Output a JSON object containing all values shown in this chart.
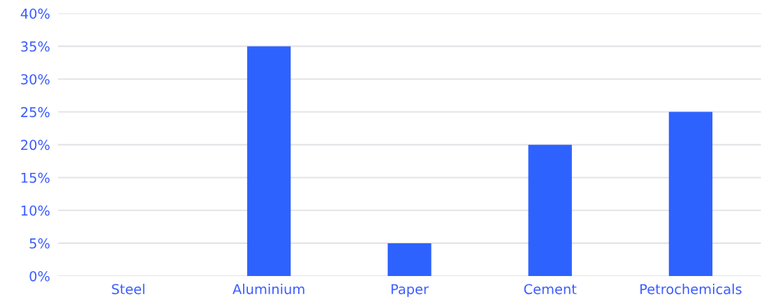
{
  "chart_data": {
    "type": "bar",
    "categories": [
      "Steel",
      "Aluminium",
      "Paper",
      "Cement",
      "Petrochemicals"
    ],
    "values": [
      0,
      35,
      5,
      20,
      25
    ],
    "color": "#2e62ff",
    "ylim": [
      0,
      40
    ],
    "yticks": [
      {
        "value": 0,
        "label": "0%"
      },
      {
        "value": 5,
        "label": "5%"
      },
      {
        "value": 10,
        "label": "10%"
      },
      {
        "value": 15,
        "label": "15%"
      },
      {
        "value": 20,
        "label": "20%"
      },
      {
        "value": 25,
        "label": "25%"
      },
      {
        "value": 30,
        "label": "30%"
      },
      {
        "value": 35,
        "label": "35%"
      },
      {
        "value": 40,
        "label": "40%"
      }
    ],
    "grid": "y"
  }
}
